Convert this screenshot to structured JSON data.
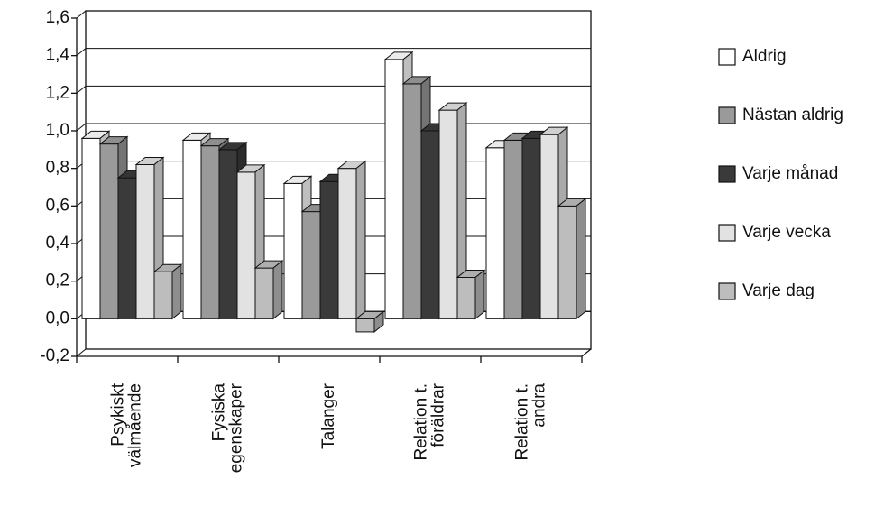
{
  "chart_data": {
    "type": "bar3d",
    "categories": [
      "Psykiskt\nvälmående",
      "Fysiska\negenskaper",
      "Talanger",
      "Relation t.\nföräldrar",
      "Relation t.\nandra"
    ],
    "series": [
      {
        "name": "Aldrig",
        "color": "#ffffff",
        "values": [
          0.96,
          0.95,
          0.72,
          1.38,
          0.91
        ]
      },
      {
        "name": "Nästan aldrig",
        "color": "#9a9a9a",
        "values": [
          0.93,
          0.92,
          0.57,
          1.25,
          0.95
        ]
      },
      {
        "name": "Varje månad",
        "color": "#3a3a3a",
        "values": [
          0.75,
          0.9,
          0.73,
          1.0,
          0.96
        ]
      },
      {
        "name": "Varje vecka",
        "color": "#e2e2e2",
        "values": [
          0.82,
          0.78,
          0.8,
          1.11,
          0.98
        ]
      },
      {
        "name": "Varje dag",
        "color": "#bdbdbd",
        "values": [
          0.25,
          0.27,
          -0.07,
          0.22,
          0.6
        ]
      }
    ],
    "ylim": [
      -0.2,
      1.6
    ],
    "yticks": [
      {
        "value": -0.2,
        "label": "-0,2"
      },
      {
        "value": 0,
        "label": "0,0"
      },
      {
        "value": 0.2,
        "label": "0,2"
      },
      {
        "value": 0.4,
        "label": "0,4"
      },
      {
        "value": 0.6,
        "label": "0,6"
      },
      {
        "value": 0.8,
        "label": "0,8"
      },
      {
        "value": 1.0,
        "label": "1,0"
      },
      {
        "value": 1.2,
        "label": "1,2"
      },
      {
        "value": 1.4,
        "label": "1,4"
      },
      {
        "value": 1.6,
        "label": "1,6"
      }
    ],
    "grid": true
  }
}
